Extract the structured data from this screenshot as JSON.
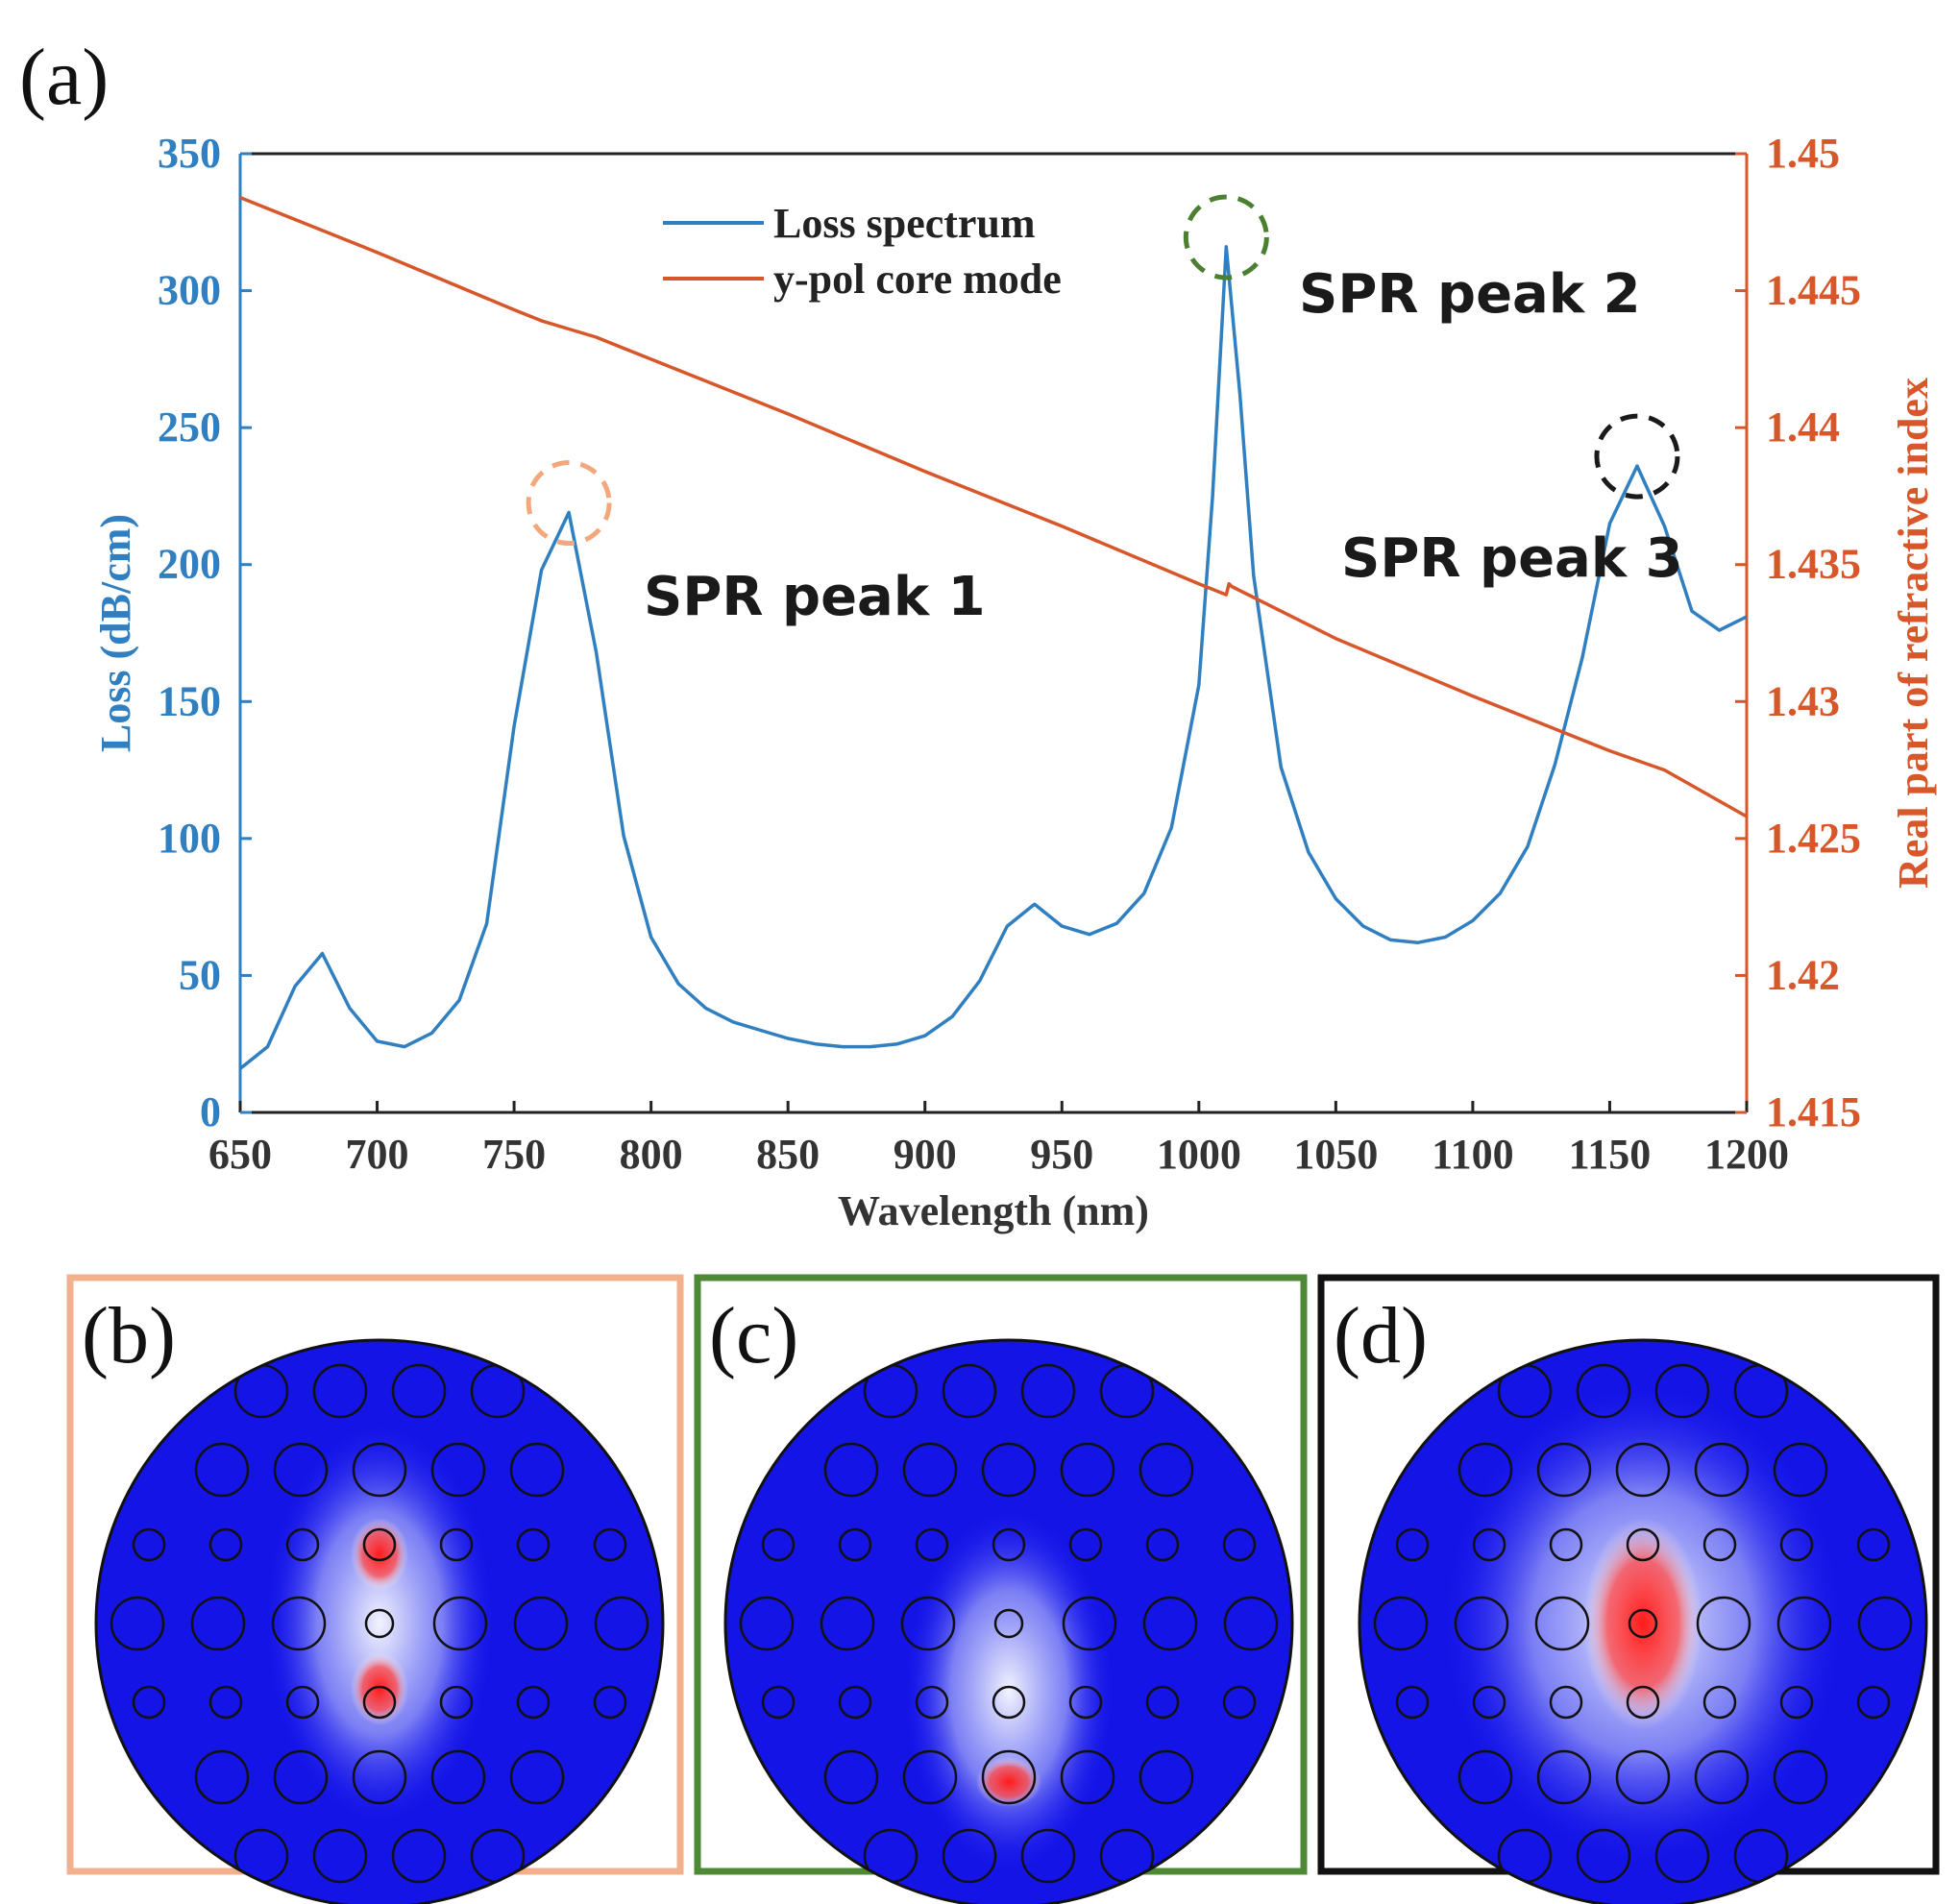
{
  "chart_data": {
    "type": "line",
    "panel_label": "(a)",
    "xlabel": "Wavelength (nm)",
    "ylabel_left": "Loss (dB/cm)",
    "ylabel_right": "Real part of refractive index",
    "xlim": [
      650,
      1200
    ],
    "ylim_left": [
      0,
      350
    ],
    "ylim_right": [
      1.415,
      1.45
    ],
    "x_ticks": [
      "650",
      "700",
      "750",
      "800",
      "850",
      "900",
      "950",
      "1000",
      "1050",
      "1100",
      "1150",
      "1200"
    ],
    "y_left_ticks": [
      "0",
      "50",
      "100",
      "150",
      "200",
      "250",
      "300",
      "350"
    ],
    "y_right_ticks": [
      "1.415",
      "1.42",
      "1.425",
      "1.43",
      "1.435",
      "1.44",
      "1.445",
      "1.45"
    ],
    "legend": [
      "Loss spectrum",
      "y-pol core mode"
    ],
    "series": [
      {
        "name": "Loss spectrum",
        "axis": "left",
        "color": "#2f7fc1",
        "x": [
          650,
          660,
          670,
          680,
          690,
          700,
          710,
          720,
          730,
          740,
          750,
          760,
          770,
          780,
          790,
          800,
          810,
          820,
          830,
          840,
          850,
          860,
          870,
          880,
          890,
          900,
          910,
          920,
          930,
          940,
          950,
          960,
          970,
          980,
          990,
          1000,
          1005,
          1010,
          1015,
          1020,
          1030,
          1040,
          1050,
          1060,
          1070,
          1080,
          1090,
          1100,
          1110,
          1120,
          1130,
          1140,
          1150,
          1160,
          1170,
          1180,
          1190,
          1200
        ],
        "values": [
          16,
          24,
          46,
          58,
          38,
          26,
          24,
          29,
          41,
          69,
          141,
          198,
          219,
          168,
          101,
          64,
          47,
          38,
          33,
          30,
          27,
          25,
          24,
          24,
          25,
          28,
          35,
          48,
          68,
          76,
          68,
          65,
          69,
          80,
          104,
          156,
          225,
          316,
          262,
          196,
          126,
          95,
          78,
          68,
          63,
          62,
          64,
          70,
          80,
          97,
          127,
          166,
          215,
          236,
          214,
          183,
          176,
          181
        ]
      },
      {
        "name": "y-pol core mode",
        "axis": "right",
        "color": "#d8572a",
        "x": [
          650,
          700,
          750,
          760,
          770,
          780,
          790,
          800,
          850,
          900,
          950,
          1000,
          1010,
          1011,
          1012,
          1050,
          1100,
          1150,
          1170,
          1200
        ],
        "values": [
          1.4484,
          1.4464,
          1.4443,
          1.4439,
          1.4436,
          1.4433,
          1.4429,
          1.4425,
          1.4405,
          1.4384,
          1.4364,
          1.4343,
          1.4339,
          1.4343,
          1.4342,
          1.4323,
          1.4302,
          1.4282,
          1.4275,
          1.4258
        ]
      }
    ],
    "annotations": [
      {
        "text": "SPR peak 1",
        "x": 770,
        "y": 219,
        "color": "#f2a87c"
      },
      {
        "text": "SPR peak 2",
        "x": 1010,
        "y": 316,
        "color": "#4a8030"
      },
      {
        "text": "SPR peak 3",
        "x": 1160,
        "y": 236,
        "color": "#1a1a1a"
      }
    ]
  },
  "mode_panels": [
    {
      "label": "(b)",
      "frame_color": "#f2b08c",
      "peak": "SPR peak 1"
    },
    {
      "label": "(c)",
      "frame_color": "#4e8a35",
      "peak": "SPR peak 2"
    },
    {
      "label": "(d)",
      "frame_color": "#111111",
      "peak": "SPR peak 3"
    }
  ]
}
